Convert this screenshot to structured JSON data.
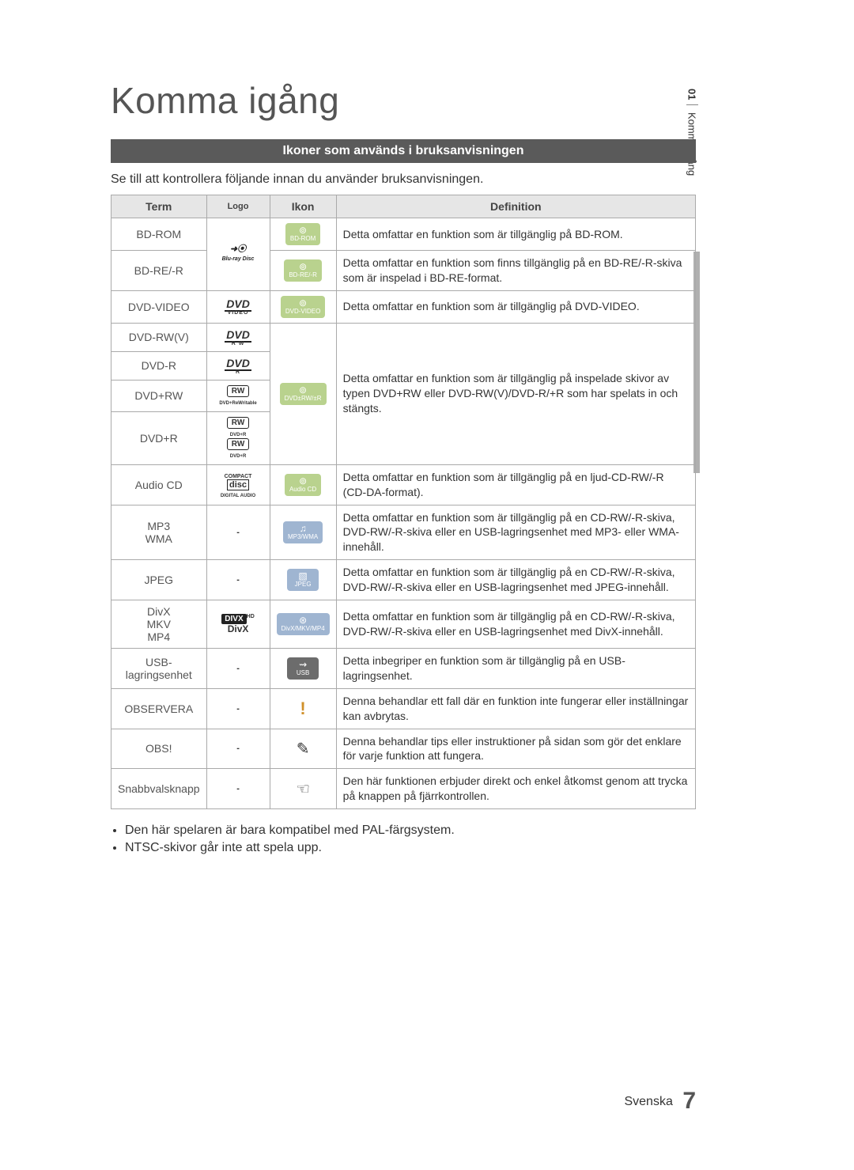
{
  "title": "Komma igång",
  "side_tab": {
    "number": "01",
    "label": "Komma igång"
  },
  "section_heading": "Ikoner som används i bruksanvisningen",
  "intro": "Se till att kontrollera följande innan du använder bruksanvisningen.",
  "table": {
    "headers": {
      "term": "Term",
      "logo": "Logo",
      "ikon": "Ikon",
      "definition": "Definition"
    },
    "rows": [
      {
        "term": "BD-ROM",
        "logo_type": "bluray",
        "ikon": {
          "glyph": "⊚",
          "label": "BD-ROM",
          "bg": "#b9d28e"
        },
        "definition": "Detta omfattar en funktion som är tillgänglig på BD-ROM."
      },
      {
        "term": "BD-RE/-R",
        "logo_type": "merge_above",
        "ikon": {
          "glyph": "⊚",
          "label": "BD-RE/-R",
          "bg": "#b9d28e"
        },
        "definition": "Detta omfattar en funktion som finns tillgänglig på en BD-RE/-R-skiva som är inspelad i BD-RE-format."
      },
      {
        "term": "DVD-VIDEO",
        "logo_type": "dvd_video",
        "ikon": {
          "glyph": "⊚",
          "label": "DVD-VIDEO",
          "bg": "#b9d28e"
        },
        "definition": "Detta omfattar en funktion som är tillgänglig på DVD-VIDEO."
      },
      {
        "term": "DVD-RW(V)",
        "logo_type": "dvd_rw",
        "definition": "Detta omfattar en funktion som är tillgänglig på inspelade skivor av typen DVD+RW eller DVD-RW(V)/DVD-R/+R som har spelats in och stängts.",
        "ikon": {
          "glyph": "⊚",
          "label": "DVD±RW/±R",
          "bg": "#b9d28e"
        }
      },
      {
        "term": "DVD-R",
        "logo_type": "dvd_r"
      },
      {
        "term": "DVD+RW",
        "logo_type": "rw_box"
      },
      {
        "term": "DVD+R",
        "logo_type": "rw_box_double"
      },
      {
        "term": "Audio CD",
        "logo_type": "cdda",
        "ikon": {
          "glyph": "⊚",
          "label": "Audio CD",
          "bg": "#b9d28e"
        },
        "definition": "Detta omfattar en funktion som är tillgänglig på en ljud-CD-RW/-R (CD-DA-format)."
      },
      {
        "term": "MP3\nWMA",
        "logo_type": "dash",
        "ikon": {
          "glyph": "♫",
          "label": "MP3/WMA",
          "bg": "#9fb5d1"
        },
        "definition": "Detta omfattar en funktion som är tillgänglig på en CD-RW/-R-skiva, DVD-RW/-R-skiva eller en USB-lagringsenhet med MP3- eller WMA-innehåll."
      },
      {
        "term": "JPEG",
        "logo_type": "dash",
        "ikon": {
          "glyph": "▧",
          "label": "JPEG",
          "bg": "#9fb5d1"
        },
        "definition": "Detta omfattar en funktion som är tillgänglig på en CD-RW/-R-skiva, DVD-RW/-R-skiva eller en USB-lagringsenhet med JPEG-innehåll."
      },
      {
        "term": "DivX\nMKV\nMP4",
        "logo_type": "divx",
        "ikon": {
          "glyph": "⊛",
          "label": "DivX/MKV/MP4",
          "bg": "#9fb5d1"
        },
        "definition": "Detta omfattar en funktion som är tillgänglig på en CD-RW/-R-skiva, DVD-RW/-R-skiva eller en USB-lagringsenhet med DivX-innehåll."
      },
      {
        "term": "USB-lagringsenhet",
        "logo_type": "dash",
        "ikon": {
          "glyph": "⇝",
          "label": "USB",
          "bg": "#6c6c6c"
        },
        "definition": "Detta inbegriper en funktion som är tillgänglig på en USB-lagringsenhet."
      },
      {
        "term": "OBSERVERA",
        "logo_type": "dash",
        "ikon": {
          "plain": "caution"
        },
        "definition": "Denna behandlar ett fall där en funktion inte fungerar eller inställningar kan avbrytas."
      },
      {
        "term": "OBS!",
        "logo_type": "dash",
        "ikon": {
          "plain": "note"
        },
        "definition": "Denna behandlar tips eller instruktioner på sidan som gör det enklare för varje funktion att fungera."
      },
      {
        "term": "Snabbvalsknapp",
        "logo_type": "dash",
        "ikon": {
          "plain": "hand"
        },
        "definition": "Den här funktionen erbjuder direkt och enkel åtkomst genom att trycka på knappen på fjärrkontrollen."
      }
    ]
  },
  "bullets": [
    "Den här spelaren är bara kompatibel med PAL-färgsystem.",
    "NTSC-skivor går inte att spela upp."
  ],
  "footer": {
    "language": "Svenska",
    "page": "7"
  }
}
